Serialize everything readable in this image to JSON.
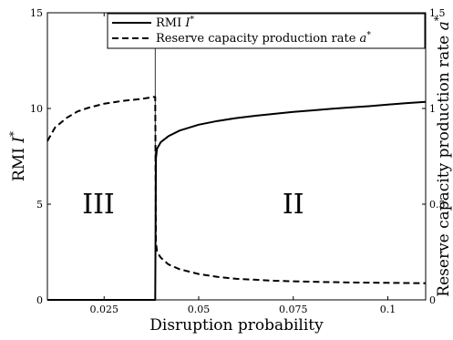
{
  "chart_data": {
    "type": "line",
    "xlabel": "Disruption probability",
    "ylabel_left": "RMI I*",
    "ylabel_right": "Reserve capacity production rate a*",
    "xlim": [
      0.01,
      0.11
    ],
    "ylim_left": [
      0,
      15
    ],
    "ylim_right": [
      0,
      1.5
    ],
    "x_ticks": [
      "0.025",
      "0.05",
      "0.075",
      "0.1"
    ],
    "y_ticks_left": [
      "0",
      "5",
      "10",
      "15"
    ],
    "y_ticks_right": [
      "0",
      "0.5",
      "1",
      "1.5"
    ],
    "threshold_x": 0.0385,
    "region_labels": [
      {
        "text": "III",
        "x": 0.0235,
        "y": 5
      },
      {
        "text": "II",
        "x": 0.075,
        "y": 5
      }
    ],
    "legend": {
      "position": "top-right",
      "entries": [
        "RMI I*",
        "Reserve capacity production rate a*"
      ]
    },
    "series": [
      {
        "name": "RMI I*",
        "axis": "left",
        "style": "solid",
        "x": [
          0.01,
          0.038,
          0.0385,
          0.0387,
          0.039,
          0.04,
          0.042,
          0.045,
          0.05,
          0.055,
          0.06,
          0.065,
          0.07,
          0.075,
          0.08,
          0.085,
          0.09,
          0.095,
          0.1,
          0.105,
          0.11
        ],
        "y": [
          0,
          0,
          0,
          7.4,
          7.9,
          8.25,
          8.55,
          8.85,
          9.15,
          9.35,
          9.5,
          9.62,
          9.72,
          9.82,
          9.9,
          9.98,
          10.05,
          10.12,
          10.2,
          10.28,
          10.35
        ]
      },
      {
        "name": "Reserve capacity production rate a*",
        "axis": "right",
        "style": "dashed",
        "x": [
          0.01,
          0.012,
          0.015,
          0.018,
          0.021,
          0.025,
          0.03,
          0.035,
          0.038,
          0.0385,
          0.0387,
          0.039,
          0.04,
          0.042,
          0.045,
          0.05,
          0.055,
          0.06,
          0.065,
          0.07,
          0.075,
          0.08,
          0.085,
          0.09,
          0.095,
          0.1,
          0.105,
          0.11
        ],
        "y": [
          0.83,
          0.9,
          0.95,
          0.985,
          1.005,
          1.025,
          1.04,
          1.05,
          1.06,
          1.06,
          0.3,
          0.25,
          0.22,
          0.185,
          0.16,
          0.135,
          0.12,
          0.11,
          0.105,
          0.1,
          0.097,
          0.095,
          0.093,
          0.091,
          0.09,
          0.089,
          0.088,
          0.087
        ]
      }
    ]
  }
}
